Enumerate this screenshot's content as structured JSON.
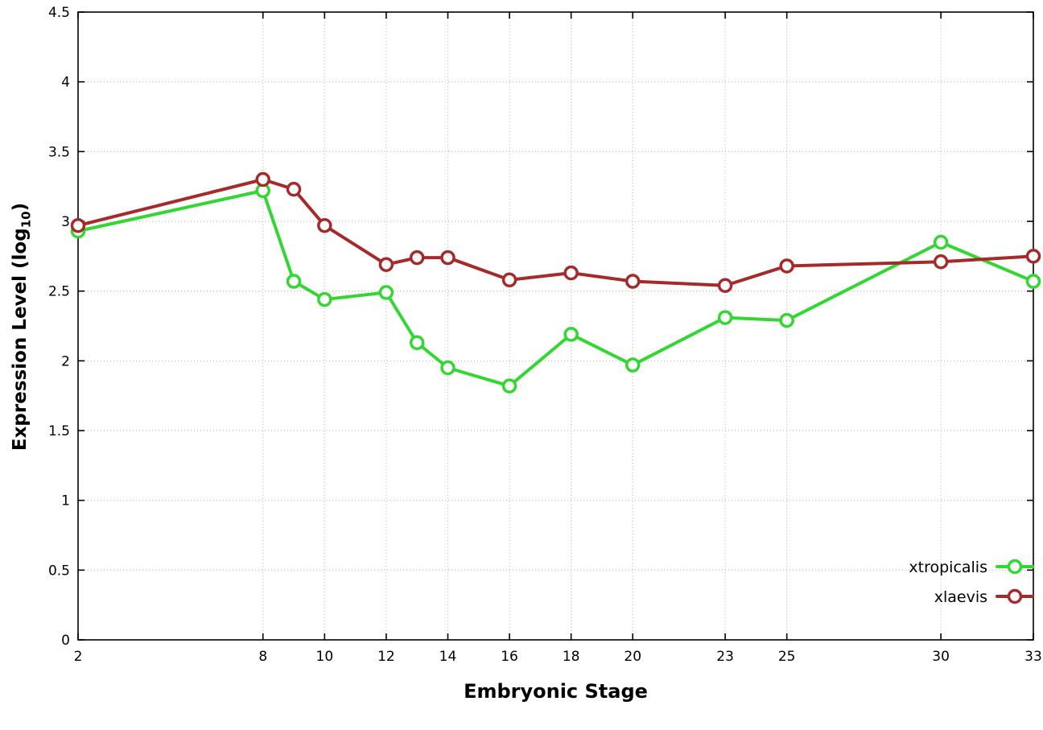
{
  "chart_data": {
    "type": "line",
    "title": "",
    "xlabel": "Embryonic Stage",
    "ylabel": {
      "pre": "Expression Level (log",
      "sub": "10",
      "post": ")"
    },
    "xlim": [
      2,
      33
    ],
    "ylim": [
      0,
      4.5
    ],
    "x_ticks": [
      2,
      8,
      10,
      12,
      14,
      16,
      18,
      20,
      23,
      25,
      30,
      33
    ],
    "y_ticks": [
      0,
      0.5,
      1,
      1.5,
      2,
      2.5,
      3,
      3.5,
      4,
      4.5
    ],
    "grid": true,
    "legend_position": "inside-bottom-right",
    "x": [
      2,
      8,
      9,
      10,
      12,
      13,
      14,
      16,
      18,
      20,
      23,
      25,
      30,
      33
    ],
    "series": [
      {
        "name": "xtropicalis",
        "color": "#33d633",
        "values": [
          2.93,
          3.22,
          2.57,
          2.44,
          2.49,
          2.13,
          1.95,
          1.82,
          2.19,
          1.97,
          2.31,
          2.29,
          2.85,
          2.57
        ]
      },
      {
        "name": "xlaevis",
        "color": "#a52a2a",
        "values": [
          2.97,
          3.3,
          3.23,
          2.97,
          2.69,
          2.74,
          2.74,
          2.58,
          2.63,
          2.57,
          2.54,
          2.68,
          2.71,
          2.75
        ]
      }
    ],
    "colors": {
      "grid": "#b3b3b3",
      "border": "#000000"
    }
  }
}
